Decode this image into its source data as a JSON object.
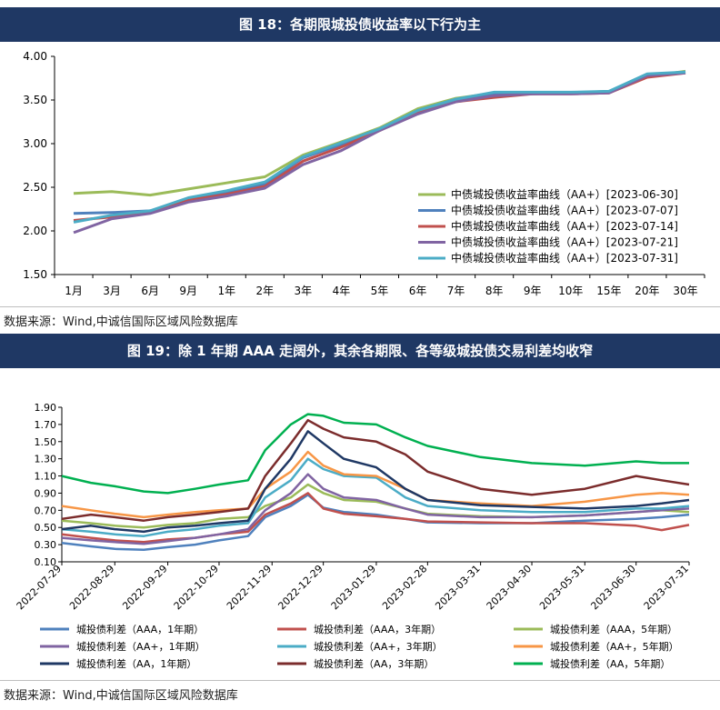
{
  "chart_data": [
    {
      "type": "line",
      "title": "图 18：各期限城投债收益率以下行为主",
      "categories": [
        "1月",
        "3月",
        "6月",
        "9月",
        "1年",
        "2年",
        "3年",
        "4年",
        "5年",
        "6年",
        "7年",
        "8年",
        "9年",
        "10年",
        "15年",
        "20年",
        "30年"
      ],
      "ylim": [
        1.5,
        4.0
      ],
      "yticks": [
        "1.50",
        "2.00",
        "2.50",
        "3.00",
        "3.50",
        "4.00"
      ],
      "legend_position": "right",
      "grid": false,
      "series": [
        {
          "name": "中债城投债收益率曲线（AA+）[2023-06-30]",
          "color": "#9bbb59",
          "values": [
            2.43,
            2.45,
            2.41,
            2.48,
            2.55,
            2.62,
            2.87,
            3.02,
            3.18,
            3.4,
            3.52,
            3.58,
            3.58,
            3.58,
            3.6,
            3.77,
            3.83
          ]
        },
        {
          "name": "中债城投债收益率曲线（AA+）[2023-07-07]",
          "color": "#4f81bd",
          "values": [
            2.2,
            2.21,
            2.23,
            2.36,
            2.44,
            2.54,
            2.84,
            2.99,
            3.16,
            3.37,
            3.49,
            3.57,
            3.57,
            3.58,
            3.59,
            3.79,
            3.82
          ]
        },
        {
          "name": "中债城投债收益率曲线（AA+）[2023-07-14]",
          "color": "#c0504d",
          "values": [
            2.12,
            2.16,
            2.22,
            2.35,
            2.42,
            2.51,
            2.8,
            2.96,
            3.15,
            3.36,
            3.48,
            3.53,
            3.57,
            3.57,
            3.58,
            3.76,
            3.81
          ]
        },
        {
          "name": "中债城投债收益率曲线（AA+）[2023-07-21]",
          "color": "#8064a2",
          "values": [
            1.98,
            2.14,
            2.2,
            2.33,
            2.4,
            2.49,
            2.76,
            2.92,
            3.15,
            3.34,
            3.48,
            3.55,
            3.57,
            3.57,
            3.58,
            3.78,
            3.81
          ]
        },
        {
          "name": "中债城投债收益率曲线（AA+）[2023-07-31]",
          "color": "#4bacc6",
          "values": [
            2.1,
            2.18,
            2.23,
            2.38,
            2.46,
            2.56,
            2.85,
            3.01,
            3.17,
            3.38,
            3.51,
            3.59,
            3.59,
            3.59,
            3.6,
            3.8,
            3.82
          ]
        }
      ]
    },
    {
      "type": "line",
      "title": "图 19：除 1 年期 AAA 走阔外，其余各期限、各等级城投债交易利差均收窄",
      "x_ticks": [
        "2022-07-29",
        "2022-08-29",
        "2022-09-29",
        "2022-10-29",
        "2022-11-29",
        "2022-12-29",
        "2023-01-29",
        "2023-02-28",
        "2023-03-31",
        "2023-04-30",
        "2023-05-31",
        "2023-06-30",
        "2023-07-31"
      ],
      "x_range": [
        "2022-07-29",
        "2023-07-31"
      ],
      "ylim": [
        0.1,
        1.9
      ],
      "yticks": [
        "0.10",
        "0.30",
        "0.50",
        "0.70",
        "0.90",
        "1.10",
        "1.30",
        "1.50",
        "1.70",
        "1.90"
      ],
      "legend_position": "bottom",
      "grid": false,
      "series": [
        {
          "name": "城投债利差（AAA，1年期）",
          "color": "#4f81bd",
          "points": [
            [
              "2022-07-29",
              0.32
            ],
            [
              "2022-08-15",
              0.28
            ],
            [
              "2022-08-29",
              0.25
            ],
            [
              "2022-09-15",
              0.24
            ],
            [
              "2022-09-29",
              0.27
            ],
            [
              "2022-10-15",
              0.3
            ],
            [
              "2022-10-29",
              0.35
            ],
            [
              "2022-11-15",
              0.4
            ],
            [
              "2022-11-25",
              0.62
            ],
            [
              "2022-12-10",
              0.75
            ],
            [
              "2022-12-20",
              0.88
            ],
            [
              "2022-12-29",
              0.73
            ],
            [
              "2023-01-10",
              0.68
            ],
            [
              "2023-01-29",
              0.65
            ],
            [
              "2023-02-15",
              0.6
            ],
            [
              "2023-02-28",
              0.56
            ],
            [
              "2023-03-31",
              0.55
            ],
            [
              "2023-04-30",
              0.55
            ],
            [
              "2023-05-31",
              0.58
            ],
            [
              "2023-06-30",
              0.6
            ],
            [
              "2023-07-15",
              0.62
            ],
            [
              "2023-07-31",
              0.65
            ]
          ]
        },
        {
          "name": "城投债利差（AAA，3年期）",
          "color": "#c0504d",
          "points": [
            [
              "2022-07-29",
              0.42
            ],
            [
              "2022-08-15",
              0.38
            ],
            [
              "2022-08-29",
              0.35
            ],
            [
              "2022-09-15",
              0.33
            ],
            [
              "2022-09-29",
              0.36
            ],
            [
              "2022-10-15",
              0.38
            ],
            [
              "2022-10-29",
              0.42
            ],
            [
              "2022-11-15",
              0.45
            ],
            [
              "2022-11-25",
              0.65
            ],
            [
              "2022-12-10",
              0.78
            ],
            [
              "2022-12-20",
              0.9
            ],
            [
              "2022-12-29",
              0.72
            ],
            [
              "2023-01-10",
              0.66
            ],
            [
              "2023-01-29",
              0.63
            ],
            [
              "2023-02-15",
              0.6
            ],
            [
              "2023-02-28",
              0.57
            ],
            [
              "2023-03-31",
              0.56
            ],
            [
              "2023-04-30",
              0.55
            ],
            [
              "2023-05-31",
              0.55
            ],
            [
              "2023-06-30",
              0.52
            ],
            [
              "2023-07-15",
              0.47
            ],
            [
              "2023-07-31",
              0.53
            ]
          ]
        },
        {
          "name": "城投债利差（AAA，5年期）",
          "color": "#9bbb59",
          "points": [
            [
              "2022-07-29",
              0.58
            ],
            [
              "2022-08-15",
              0.55
            ],
            [
              "2022-08-29",
              0.52
            ],
            [
              "2022-09-15",
              0.5
            ],
            [
              "2022-09-29",
              0.53
            ],
            [
              "2022-10-15",
              0.55
            ],
            [
              "2022-10-29",
              0.6
            ],
            [
              "2022-11-15",
              0.62
            ],
            [
              "2022-11-25",
              0.75
            ],
            [
              "2022-12-10",
              0.85
            ],
            [
              "2022-12-20",
              1.0
            ],
            [
              "2022-12-29",
              0.9
            ],
            [
              "2023-01-10",
              0.82
            ],
            [
              "2023-01-29",
              0.8
            ],
            [
              "2023-02-15",
              0.72
            ],
            [
              "2023-02-28",
              0.66
            ],
            [
              "2023-03-31",
              0.63
            ],
            [
              "2023-04-30",
              0.62
            ],
            [
              "2023-05-31",
              0.64
            ],
            [
              "2023-06-30",
              0.68
            ],
            [
              "2023-07-15",
              0.7
            ],
            [
              "2023-07-31",
              0.68
            ]
          ]
        },
        {
          "name": "城投债利差（AA+，1年期）",
          "color": "#8064a2",
          "points": [
            [
              "2022-07-29",
              0.38
            ],
            [
              "2022-08-15",
              0.35
            ],
            [
              "2022-08-29",
              0.33
            ],
            [
              "2022-09-15",
              0.31
            ],
            [
              "2022-09-29",
              0.34
            ],
            [
              "2022-10-15",
              0.38
            ],
            [
              "2022-10-29",
              0.42
            ],
            [
              "2022-11-15",
              0.48
            ],
            [
              "2022-11-25",
              0.7
            ],
            [
              "2022-12-10",
              0.9
            ],
            [
              "2022-12-20",
              1.12
            ],
            [
              "2022-12-29",
              0.95
            ],
            [
              "2023-01-10",
              0.85
            ],
            [
              "2023-01-29",
              0.82
            ],
            [
              "2023-02-15",
              0.72
            ],
            [
              "2023-02-28",
              0.65
            ],
            [
              "2023-03-31",
              0.62
            ],
            [
              "2023-04-30",
              0.62
            ],
            [
              "2023-05-31",
              0.64
            ],
            [
              "2023-06-30",
              0.68
            ],
            [
              "2023-07-15",
              0.7
            ],
            [
              "2023-07-31",
              0.72
            ]
          ]
        },
        {
          "name": "城投债利差（AA+，3年期）",
          "color": "#4bacc6",
          "points": [
            [
              "2022-07-29",
              0.48
            ],
            [
              "2022-08-15",
              0.45
            ],
            [
              "2022-08-29",
              0.42
            ],
            [
              "2022-09-15",
              0.4
            ],
            [
              "2022-09-29",
              0.45
            ],
            [
              "2022-10-15",
              0.48
            ],
            [
              "2022-10-29",
              0.52
            ],
            [
              "2022-11-15",
              0.55
            ],
            [
              "2022-11-25",
              0.85
            ],
            [
              "2022-12-10",
              1.05
            ],
            [
              "2022-12-20",
              1.3
            ],
            [
              "2022-12-29",
              1.18
            ],
            [
              "2023-01-10",
              1.1
            ],
            [
              "2023-01-29",
              1.08
            ],
            [
              "2023-02-15",
              0.85
            ],
            [
              "2023-02-28",
              0.75
            ],
            [
              "2023-03-31",
              0.7
            ],
            [
              "2023-04-30",
              0.68
            ],
            [
              "2023-05-31",
              0.68
            ],
            [
              "2023-06-30",
              0.72
            ],
            [
              "2023-07-15",
              0.72
            ],
            [
              "2023-07-31",
              0.75
            ]
          ]
        },
        {
          "name": "城投债利差（AA+，5年期）",
          "color": "#f79646",
          "points": [
            [
              "2022-07-29",
              0.75
            ],
            [
              "2022-08-15",
              0.7
            ],
            [
              "2022-08-29",
              0.66
            ],
            [
              "2022-09-15",
              0.62
            ],
            [
              "2022-09-29",
              0.65
            ],
            [
              "2022-10-15",
              0.68
            ],
            [
              "2022-10-29",
              0.7
            ],
            [
              "2022-11-15",
              0.72
            ],
            [
              "2022-11-25",
              0.95
            ],
            [
              "2022-12-10",
              1.15
            ],
            [
              "2022-12-20",
              1.38
            ],
            [
              "2022-12-29",
              1.22
            ],
            [
              "2023-01-10",
              1.12
            ],
            [
              "2023-01-29",
              1.1
            ],
            [
              "2023-02-15",
              0.95
            ],
            [
              "2023-02-28",
              0.82
            ],
            [
              "2023-03-31",
              0.78
            ],
            [
              "2023-04-30",
              0.75
            ],
            [
              "2023-05-31",
              0.8
            ],
            [
              "2023-06-30",
              0.88
            ],
            [
              "2023-07-15",
              0.9
            ],
            [
              "2023-07-31",
              0.88
            ]
          ]
        },
        {
          "name": "城投债利差（AA，1年期）",
          "color": "#1f3864",
          "points": [
            [
              "2022-07-29",
              0.48
            ],
            [
              "2022-08-15",
              0.52
            ],
            [
              "2022-08-29",
              0.48
            ],
            [
              "2022-09-15",
              0.45
            ],
            [
              "2022-09-29",
              0.5
            ],
            [
              "2022-10-15",
              0.52
            ],
            [
              "2022-10-29",
              0.55
            ],
            [
              "2022-11-15",
              0.58
            ],
            [
              "2022-11-25",
              0.95
            ],
            [
              "2022-12-10",
              1.3
            ],
            [
              "2022-12-20",
              1.62
            ],
            [
              "2022-12-29",
              1.48
            ],
            [
              "2023-01-10",
              1.3
            ],
            [
              "2023-01-29",
              1.2
            ],
            [
              "2023-02-15",
              0.95
            ],
            [
              "2023-02-28",
              0.82
            ],
            [
              "2023-03-31",
              0.76
            ],
            [
              "2023-04-30",
              0.74
            ],
            [
              "2023-05-31",
              0.72
            ],
            [
              "2023-06-30",
              0.75
            ],
            [
              "2023-07-15",
              0.78
            ],
            [
              "2023-07-31",
              0.82
            ]
          ]
        },
        {
          "name": "城投债利差（AA，3年期）",
          "color": "#7b2c2c",
          "points": [
            [
              "2022-07-29",
              0.6
            ],
            [
              "2022-08-15",
              0.65
            ],
            [
              "2022-08-29",
              0.62
            ],
            [
              "2022-09-15",
              0.58
            ],
            [
              "2022-09-29",
              0.62
            ],
            [
              "2022-10-15",
              0.65
            ],
            [
              "2022-10-29",
              0.68
            ],
            [
              "2022-11-15",
              0.72
            ],
            [
              "2022-11-25",
              1.1
            ],
            [
              "2022-12-10",
              1.48
            ],
            [
              "2022-12-20",
              1.75
            ],
            [
              "2022-12-29",
              1.65
            ],
            [
              "2023-01-10",
              1.55
            ],
            [
              "2023-01-29",
              1.5
            ],
            [
              "2023-02-15",
              1.35
            ],
            [
              "2023-02-28",
              1.15
            ],
            [
              "2023-03-31",
              0.95
            ],
            [
              "2023-04-30",
              0.88
            ],
            [
              "2023-05-31",
              0.95
            ],
            [
              "2023-06-30",
              1.1
            ],
            [
              "2023-07-15",
              1.05
            ],
            [
              "2023-07-31",
              1.0
            ]
          ]
        },
        {
          "name": "城投债利差（AA，5年期）",
          "color": "#00b050",
          "points": [
            [
              "2022-07-29",
              1.1
            ],
            [
              "2022-08-15",
              1.02
            ],
            [
              "2022-08-29",
              0.98
            ],
            [
              "2022-09-15",
              0.92
            ],
            [
              "2022-09-29",
              0.9
            ],
            [
              "2022-10-15",
              0.95
            ],
            [
              "2022-10-29",
              1.0
            ],
            [
              "2022-11-15",
              1.05
            ],
            [
              "2022-11-25",
              1.4
            ],
            [
              "2022-12-10",
              1.7
            ],
            [
              "2022-12-20",
              1.82
            ],
            [
              "2022-12-29",
              1.8
            ],
            [
              "2023-01-10",
              1.72
            ],
            [
              "2023-01-29",
              1.7
            ],
            [
              "2023-02-15",
              1.55
            ],
            [
              "2023-02-28",
              1.45
            ],
            [
              "2023-03-31",
              1.32
            ],
            [
              "2023-04-30",
              1.25
            ],
            [
              "2023-05-31",
              1.22
            ],
            [
              "2023-06-30",
              1.27
            ],
            [
              "2023-07-15",
              1.25
            ],
            [
              "2023-07-31",
              1.25
            ]
          ]
        }
      ]
    }
  ],
  "source_top": "数据来源：Wind,中诚信国际区域风险数据库",
  "source_bottom": "数据来源：Wind,中诚信国际区域风险数据库"
}
